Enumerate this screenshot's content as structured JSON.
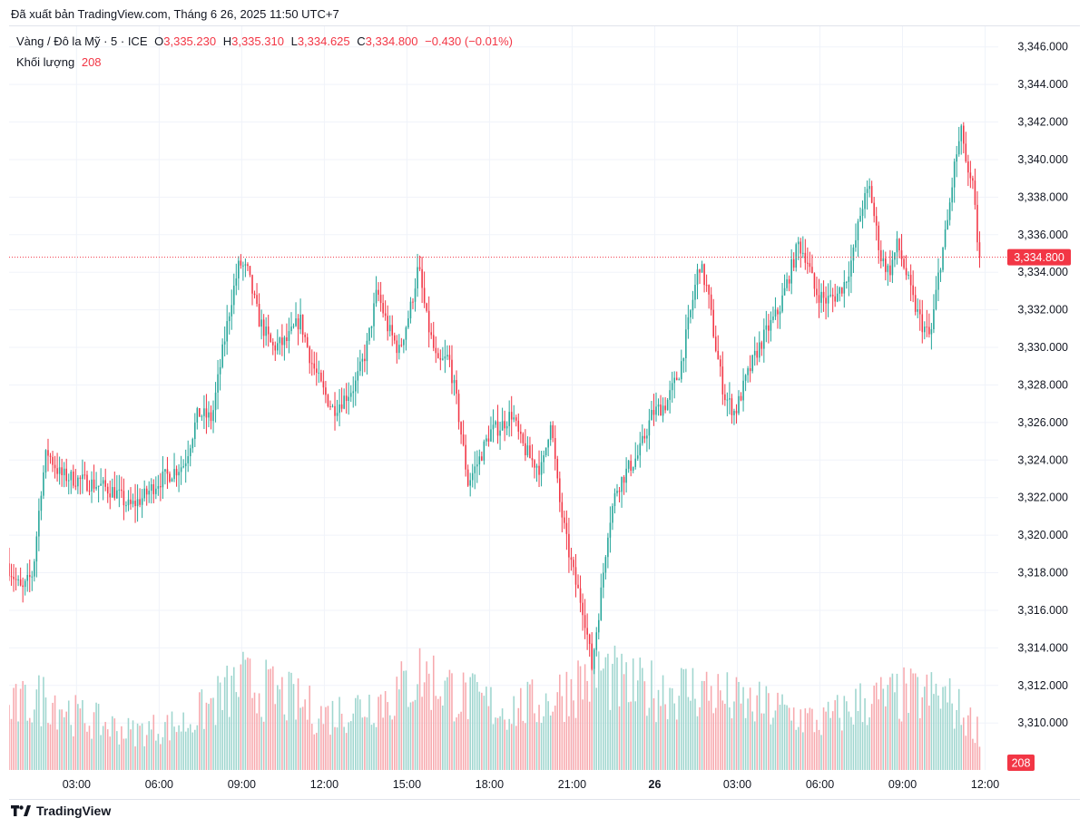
{
  "header": {
    "published": "Đã xuất bản TradingView.com, Tháng 6 26, 2025 11:50 UTC+7"
  },
  "legend": {
    "symbol": "Vàng / Đô la Mỹ · 5 · ICE",
    "open_label": "O",
    "open": "3,335.230",
    "high_label": "H",
    "high": "3,335.310",
    "low_label": "L",
    "low": "3,334.625",
    "close_label": "C",
    "close": "3,334.800",
    "change": "−0.430 (−0.01%)",
    "volume_label": "Khối lượng",
    "volume": "208"
  },
  "footer": {
    "brand": "TradingView",
    "logo_icon": "tradingview-logo-icon"
  },
  "colors": {
    "up": "#26a69a",
    "down": "#f23645",
    "up_volume": "#9fd6cf",
    "down_volume": "#f7a9ae",
    "grid": "#f0f3fa",
    "axis_text": "#131722"
  },
  "chart_data": {
    "type": "candlestick",
    "interval": "5",
    "y_axis": {
      "range": [
        3307.5,
        3347
      ],
      "ticks": [
        "3,310.000",
        "3,312.000",
        "3,314.000",
        "3,316.000",
        "3,318.000",
        "3,320.000",
        "3,322.000",
        "3,324.000",
        "3,326.000",
        "3,328.000",
        "3,330.000",
        "3,332.000",
        "3,334.000",
        "3,336.000",
        "3,338.000",
        "3,340.000",
        "3,342.000",
        "3,344.000",
        "3,346.000"
      ],
      "last_price_label": "3,334.800",
      "last_price": 3334.8,
      "volume_label": "208"
    },
    "x_axis": {
      "ticks": [
        "03:00",
        "06:00",
        "09:00",
        "12:00",
        "15:00",
        "18:00",
        "21:00",
        "26",
        "03:00",
        "06:00",
        "09:00",
        "12:00"
      ],
      "tick_hours": [
        3,
        6,
        9,
        12,
        15,
        18,
        21,
        24,
        27,
        30,
        33,
        36
      ],
      "start_hour": 0.55,
      "end_hour": 35.85,
      "bold_tick": "26"
    },
    "price_path": [
      [
        0.55,
        3318.5
      ],
      [
        1.1,
        3317.0
      ],
      [
        1.5,
        3318.0
      ],
      [
        1.8,
        3322.5
      ],
      [
        2.0,
        3324.5
      ],
      [
        2.5,
        3323.2
      ],
      [
        3.0,
        3323.0
      ],
      [
        3.5,
        3322.8
      ],
      [
        4.0,
        3322.6
      ],
      [
        4.5,
        3322.3
      ],
      [
        5.0,
        3321.5
      ],
      [
        5.5,
        3322.0
      ],
      [
        6.0,
        3322.8
      ],
      [
        6.5,
        3323.3
      ],
      [
        7.0,
        3323.8
      ],
      [
        7.5,
        3326.5
      ],
      [
        8.0,
        3326.2
      ],
      [
        8.3,
        3329.0
      ],
      [
        8.7,
        3332.5
      ],
      [
        9.0,
        3334.5
      ],
      [
        9.3,
        3334.0
      ],
      [
        9.7,
        3331.5
      ],
      [
        10.2,
        3330.0
      ],
      [
        10.7,
        3330.3
      ],
      [
        11.2,
        3331.5
      ],
      [
        11.6,
        3329.3
      ],
      [
        12.0,
        3327.8
      ],
      [
        12.4,
        3326.7
      ],
      [
        12.8,
        3327.3
      ],
      [
        13.2,
        3328.0
      ],
      [
        13.6,
        3329.8
      ],
      [
        14.0,
        3333.0
      ],
      [
        14.4,
        3331.0
      ],
      [
        14.8,
        3329.8
      ],
      [
        15.2,
        3332.0
      ],
      [
        15.5,
        3334.3
      ],
      [
        15.8,
        3331.5
      ],
      [
        16.2,
        3329.0
      ],
      [
        16.6,
        3329.5
      ],
      [
        16.9,
        3327.0
      ],
      [
        17.3,
        3322.8
      ],
      [
        17.7,
        3324.0
      ],
      [
        18.1,
        3325.5
      ],
      [
        18.5,
        3325.8
      ],
      [
        18.9,
        3326.5
      ],
      [
        19.2,
        3325.0
      ],
      [
        19.6,
        3324.0
      ],
      [
        20.0,
        3323.5
      ],
      [
        20.3,
        3326.2
      ],
      [
        20.6,
        3322.0
      ],
      [
        20.9,
        3319.5
      ],
      [
        21.2,
        3317.5
      ],
      [
        21.5,
        3316.0
      ],
      [
        21.8,
        3313.0
      ],
      [
        22.1,
        3316.5
      ],
      [
        22.4,
        3320.5
      ],
      [
        22.7,
        3322.5
      ],
      [
        23.1,
        3323.5
      ],
      [
        23.5,
        3324.3
      ],
      [
        24.0,
        3326.5
      ],
      [
        24.5,
        3327.0
      ],
      [
        25.0,
        3328.8
      ],
      [
        25.4,
        3332.0
      ],
      [
        25.7,
        3334.5
      ],
      [
        26.0,
        3333.0
      ],
      [
        26.3,
        3330.0
      ],
      [
        26.6,
        3327.5
      ],
      [
        27.0,
        3326.5
      ],
      [
        27.4,
        3328.3
      ],
      [
        27.8,
        3329.8
      ],
      [
        28.2,
        3331.0
      ],
      [
        28.6,
        3332.0
      ],
      [
        29.0,
        3334.0
      ],
      [
        29.3,
        3335.5
      ],
      [
        29.6,
        3334.8
      ],
      [
        29.9,
        3333.0
      ],
      [
        30.3,
        3332.5
      ],
      [
        30.7,
        3332.8
      ],
      [
        31.0,
        3333.5
      ],
      [
        31.3,
        3335.0
      ],
      [
        31.6,
        3337.5
      ],
      [
        31.9,
        3338.5
      ],
      [
        32.1,
        3336.5
      ],
      [
        32.3,
        3334.8
      ],
      [
        32.6,
        3334.0
      ],
      [
        32.9,
        3335.5
      ],
      [
        33.2,
        3334.0
      ],
      [
        33.5,
        3332.3
      ],
      [
        33.8,
        3331.2
      ],
      [
        34.1,
        3330.5
      ],
      [
        34.4,
        3334.0
      ],
      [
        34.7,
        3336.5
      ],
      [
        35.0,
        3340.0
      ],
      [
        35.25,
        3341.6
      ],
      [
        35.45,
        3339.0
      ],
      [
        35.65,
        3338.5
      ],
      [
        35.85,
        3334.8
      ]
    ],
    "volume_profile": [
      [
        0.55,
        0.45
      ],
      [
        2.0,
        0.55
      ],
      [
        3.0,
        0.4
      ],
      [
        5.0,
        0.28
      ],
      [
        7.0,
        0.35
      ],
      [
        9.0,
        0.65
      ],
      [
        10.5,
        0.55
      ],
      [
        12.0,
        0.4
      ],
      [
        14.5,
        0.55
      ],
      [
        15.5,
        0.72
      ],
      [
        17.0,
        0.55
      ],
      [
        18.5,
        0.45
      ],
      [
        20.0,
        0.5
      ],
      [
        21.2,
        0.65
      ],
      [
        22.0,
        0.75
      ],
      [
        23.0,
        0.6
      ],
      [
        24.5,
        0.6
      ],
      [
        25.8,
        0.6
      ],
      [
        27.0,
        0.5
      ],
      [
        28.5,
        0.45
      ],
      [
        30.0,
        0.35
      ],
      [
        31.5,
        0.5
      ],
      [
        33.0,
        0.55
      ],
      [
        34.5,
        0.55
      ],
      [
        35.85,
        0.28
      ]
    ],
    "volume_max_bar_fraction": 1.0
  }
}
